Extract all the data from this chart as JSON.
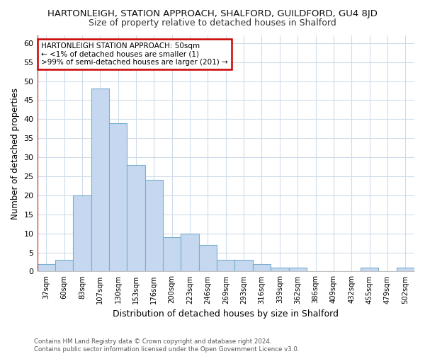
{
  "title": "HARTONLEIGH, STATION APPROACH, SHALFORD, GUILDFORD, GU4 8JD",
  "subtitle": "Size of property relative to detached houses in Shalford",
  "xlabel": "Distribution of detached houses by size in Shalford",
  "ylabel": "Number of detached properties",
  "footer_line1": "Contains HM Land Registry data © Crown copyright and database right 2024.",
  "footer_line2": "Contains public sector information licensed under the Open Government Licence v3.0.",
  "annotation_line1": "HARTONLEIGH STATION APPROACH: 50sqm",
  "annotation_line2": "← <1% of detached houses are smaller (1)",
  "annotation_line3": ">99% of semi-detached houses are larger (201) →",
  "bar_labels": [
    "37sqm",
    "60sqm",
    "83sqm",
    "107sqm",
    "130sqm",
    "153sqm",
    "176sqm",
    "200sqm",
    "223sqm",
    "246sqm",
    "269sqm",
    "293sqm",
    "316sqm",
    "339sqm",
    "362sqm",
    "386sqm",
    "409sqm",
    "432sqm",
    "455sqm",
    "479sqm",
    "502sqm"
  ],
  "bar_values": [
    2,
    3,
    20,
    48,
    39,
    28,
    24,
    9,
    10,
    7,
    3,
    3,
    2,
    1,
    1,
    0,
    0,
    0,
    1,
    0,
    1
  ],
  "bar_color": "#c5d8f0",
  "bar_edge_color": "#7aadce",
  "vline_color": "#cc0000",
  "ylim": [
    0,
    62
  ],
  "yticks": [
    0,
    5,
    10,
    15,
    20,
    25,
    30,
    35,
    40,
    45,
    50,
    55,
    60
  ],
  "bg_color": "#ffffff",
  "plot_bg_color": "#ffffff",
  "grid_color": "#d0dcea",
  "annotation_box_edge": "#cc0000",
  "title_fontsize": 9.5,
  "subtitle_fontsize": 9.0
}
